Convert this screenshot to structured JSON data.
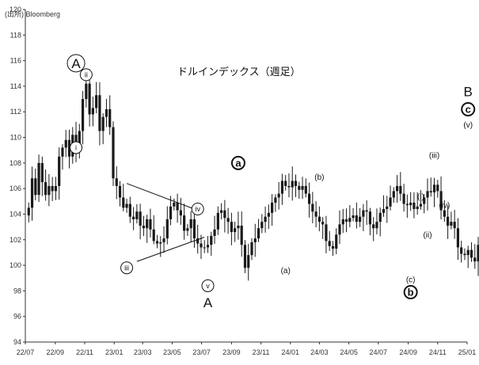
{
  "chart_data": {
    "type": "candlestick",
    "title": "ドルインデックス（週足）",
    "source_note": "(出所) Bloomberg",
    "ylim": [
      94,
      120
    ],
    "yticks": [
      94,
      96,
      98,
      100,
      102,
      104,
      106,
      108,
      110,
      112,
      114,
      116,
      118,
      120
    ],
    "xlim": [
      "2022-07",
      "2025-01"
    ],
    "xticks": [
      "22/07",
      "22/09",
      "22/11",
      "23/01",
      "23/03",
      "23/05",
      "23/07",
      "23/09",
      "23/11",
      "24/01",
      "24/03",
      "24/05",
      "24/07",
      "24/09",
      "24/11",
      "25/01"
    ],
    "grid": false,
    "legend": "none",
    "colors": {
      "candle": "#1a1a1a",
      "axis": "#333333",
      "text": "#111111"
    },
    "closes": [
      104.5,
      106.8,
      105.5,
      108.0,
      106.5,
      105.5,
      106.2,
      105.8,
      106.2,
      108.5,
      109.2,
      109.8,
      108.5,
      110.2,
      109.0,
      110.5,
      113.0,
      114.2,
      111.8,
      112.3,
      113.3,
      110.5,
      111.6,
      112.2,
      110.8,
      106.8,
      106.2,
      105.3,
      104.5,
      104.8,
      103.8,
      103.6,
      104.2,
      103.1,
      102.9,
      103.6,
      102.8,
      101.9,
      101.7,
      101.8,
      102.1,
      103.6,
      104.6,
      104.9,
      104.3,
      103.9,
      102.7,
      102.9,
      103.6,
      102.1,
      101.7,
      101.4,
      101.4,
      101.6,
      102.3,
      102.8,
      104.1,
      104.3,
      103.7,
      103.4,
      102.6,
      102.9,
      103.1,
      101.6,
      99.8,
      100.8,
      101.8,
      102.1,
      102.9,
      103.4,
      103.8,
      104.1,
      104.9,
      105.3,
      105.6,
      106.6,
      106.2,
      106.1,
      106.6,
      106.2,
      105.9,
      106.2,
      105.6,
      104.8,
      104.2,
      103.8,
      103.4,
      103.2,
      101.9,
      101.5,
      101.3,
      102.4,
      103.2,
      103.6,
      103.4,
      103.7,
      103.9,
      103.4,
      103.8,
      104.3,
      104.2,
      103.2,
      102.9,
      103.4,
      104.1,
      104.4,
      104.6,
      105.3,
      105.8,
      106.2,
      105.6,
      104.8,
      104.7,
      104.9,
      104.4,
      104.6,
      104.8,
      105.3,
      105.8,
      105.7,
      106.3,
      105.8,
      104.3,
      103.8,
      103.1,
      103.4,
      102.9,
      101.4,
      100.9,
      100.8,
      101.2,
      100.6,
      100.3,
      101.6,
      102.5,
      102.9,
      103.4,
      104.2,
      103.8,
      104.3,
      105.2,
      105.6,
      106.9,
      107.5,
      106.5,
      105.9,
      106.6,
      106.9,
      107.2,
      108.4,
      108.7,
      107.9,
      108.6,
      109.6,
      109.3
    ],
    "wave_labels": [
      {
        "text": "A",
        "style": "circle-large",
        "x": "2022-10-14",
        "y": 115.8
      },
      {
        "text": "ii",
        "style": "circle",
        "x": "2022-11-04",
        "y": 114.9
      },
      {
        "text": "i",
        "style": "circle",
        "x": "2022-10-14",
        "y": 109.2
      },
      {
        "text": "iii",
        "style": "circle",
        "x": "2023-01-27",
        "y": 99.8
      },
      {
        "text": "iv",
        "style": "circle",
        "x": "2023-06-23",
        "y": 104.4
      },
      {
        "text": "v",
        "style": "circle",
        "x": "2023-07-14",
        "y": 98.4
      },
      {
        "text": "A",
        "style": "plain-large",
        "x": "2023-07-14",
        "y": 97.1
      },
      {
        "text": "a",
        "style": "circle-bold",
        "x": "2023-09-15",
        "y": 108.0
      },
      {
        "text": "(b)",
        "style": "plain",
        "x": "2024-03-01",
        "y": 106.9
      },
      {
        "text": "(a)",
        "style": "plain",
        "x": "2023-12-22",
        "y": 99.6
      },
      {
        "text": "(c)",
        "style": "plain",
        "x": "2024-09-06",
        "y": 98.9
      },
      {
        "text": "b",
        "style": "circle-bold",
        "x": "2024-09-06",
        "y": 97.9
      },
      {
        "text": "(i)",
        "style": "plain",
        "x": "2024-09-27",
        "y": 105.4
      },
      {
        "text": "(ii)",
        "style": "plain",
        "x": "2024-10-11",
        "y": 102.4
      },
      {
        "text": "(iii)",
        "style": "plain",
        "x": "2024-10-25",
        "y": 108.6
      },
      {
        "text": "(iv)",
        "style": "plain",
        "x": "2024-11-15",
        "y": 104.7
      },
      {
        "text": "(v)",
        "style": "plain",
        "x": "2025-01-03",
        "y": 111.0
      },
      {
        "text": "B",
        "style": "plain-large",
        "x": "2025-01-03",
        "y": 113.6
      },
      {
        "text": "c",
        "style": "circle-bold",
        "x": "2025-01-03",
        "y": 112.2
      }
    ],
    "trendlines": [
      {
        "name": "triangle-upper",
        "from": {
          "x": "2023-01-27",
          "y": 106.4
        },
        "to": {
          "x": "2023-06-30",
          "y": 104.2
        }
      },
      {
        "name": "triangle-lower",
        "from": {
          "x": "2023-02-17",
          "y": 100.3
        },
        "to": {
          "x": "2023-07-07",
          "y": 102.2
        }
      }
    ]
  }
}
